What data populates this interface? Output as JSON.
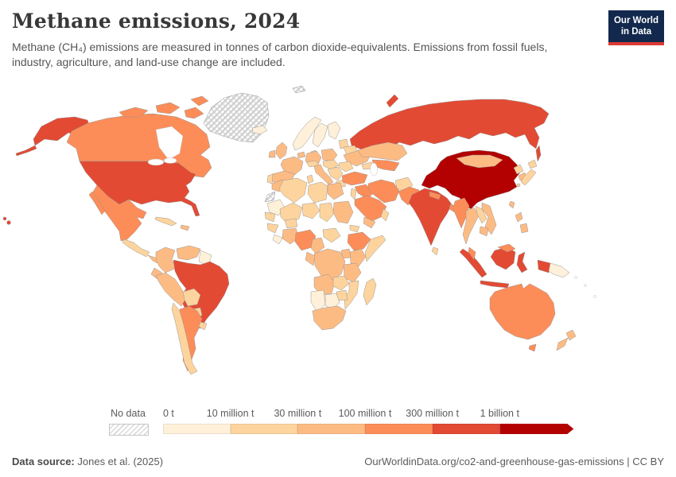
{
  "header": {
    "title": "Methane emissions, 2024",
    "subtitle": "Methane (CH₄) emissions are measured in tonnes of carbon dioxide-equivalents. Emissions from fossil fuels, industry, agriculture, and land-use change are included.",
    "logo_line1": "Our World",
    "logo_line2": "in Data"
  },
  "legend": {
    "no_data_label": "No data",
    "ticks": [
      "0 t",
      "10 million t",
      "30 million t",
      "100 million t",
      "300 million t",
      "1 billion t"
    ]
  },
  "footer": {
    "source_label": "Data source:",
    "source_value": "Jones et al. (2025)",
    "credit": "OurWorldinData.org/co2-and-greenhouse-gas-emissions | CC BY"
  },
  "chart_data": {
    "type": "heatmap",
    "subtype": "choropleth-world-map",
    "title": "Methane emissions, 2024",
    "unit": "tonnes of carbon dioxide-equivalents",
    "legend_bin_labels": [
      "0 t",
      "10 million t",
      "30 million t",
      "100 million t",
      "300 million t",
      "1 billion t"
    ],
    "bin_colors": [
      "#fef0d9",
      "#fdd49e",
      "#fdbb84",
      "#fc8d59",
      "#e34a33",
      "#b30000"
    ],
    "bin_ranges": [
      "0–10 million t",
      "10–30 million t",
      "30–100 million t",
      "100–300 million t",
      "300 million–1 billion t",
      "1 billion t +"
    ],
    "no_data_style": "diagonal-hatch",
    "countries": [
      {
        "id": "china",
        "name": "China",
        "bin": 5
      },
      {
        "id": "usa",
        "name": "United States",
        "bin": 4
      },
      {
        "id": "russia",
        "name": "Russia",
        "bin": 4
      },
      {
        "id": "india",
        "name": "India",
        "bin": 4
      },
      {
        "id": "brazil",
        "name": "Brazil",
        "bin": 4
      },
      {
        "id": "indonesia",
        "name": "Indonesia",
        "bin": 4
      },
      {
        "id": "canada",
        "name": "Canada",
        "bin": 3
      },
      {
        "id": "mexico",
        "name": "Mexico",
        "bin": 3
      },
      {
        "id": "argentina",
        "name": "Argentina",
        "bin": 3
      },
      {
        "id": "australia",
        "name": "Australia",
        "bin": 3
      },
      {
        "id": "turkey",
        "name": "Turkey",
        "bin": 3
      },
      {
        "id": "iran",
        "name": "Iran",
        "bin": 3
      },
      {
        "id": "syria-iraq",
        "name": "Iraq & Syria",
        "bin": 3
      },
      {
        "id": "saudi-arabia",
        "name": "Saudi Arabia",
        "bin": 3
      },
      {
        "id": "uzbekistan-turkmenistan",
        "name": "Uzbekistan & Turkmenistan",
        "bin": 3
      },
      {
        "id": "pakistan",
        "name": "Pakistan",
        "bin": 3
      },
      {
        "id": "nepal",
        "name": "Nepal",
        "bin": 3
      },
      {
        "id": "bangladesh",
        "name": "Bangladesh",
        "bin": 3
      },
      {
        "id": "myanmar",
        "name": "Myanmar",
        "bin": 3
      },
      {
        "id": "malaysia",
        "name": "Malaysia",
        "bin": 3
      },
      {
        "id": "nigeria",
        "name": "Nigeria",
        "bin": 3
      },
      {
        "id": "ethiopia",
        "name": "Ethiopia",
        "bin": 3
      },
      {
        "id": "colombia",
        "name": "Colombia",
        "bin": 2
      },
      {
        "id": "venezuela",
        "name": "Venezuela",
        "bin": 2
      },
      {
        "id": "ecuador",
        "name": "Ecuador",
        "bin": 2
      },
      {
        "id": "peru",
        "name": "Peru",
        "bin": 2
      },
      {
        "id": "uk",
        "name": "United Kingdom",
        "bin": 2
      },
      {
        "id": "ireland",
        "name": "Ireland",
        "bin": 2
      },
      {
        "id": "france",
        "name": "France",
        "bin": 2
      },
      {
        "id": "spain",
        "name": "Spain",
        "bin": 2
      },
      {
        "id": "germany",
        "name": "Germany",
        "bin": 2
      },
      {
        "id": "netherlands-belgium",
        "name": "Netherlands & Belgium",
        "bin": 2
      },
      {
        "id": "poland",
        "name": "Poland",
        "bin": 2
      },
      {
        "id": "italy",
        "name": "Italy",
        "bin": 2
      },
      {
        "id": "ukraine",
        "name": "Ukraine",
        "bin": 2
      },
      {
        "id": "kazakhstan",
        "name": "Kazakhstan",
        "bin": 2
      },
      {
        "id": "mongolia",
        "name": "Mongolia",
        "bin": 2
      },
      {
        "id": "south-korea",
        "name": "South Korea",
        "bin": 2
      },
      {
        "id": "taiwan",
        "name": "Taiwan",
        "bin": 2
      },
      {
        "id": "thailand",
        "name": "Thailand",
        "bin": 2
      },
      {
        "id": "vietnam",
        "name": "Vietnam",
        "bin": 2
      },
      {
        "id": "cambodia",
        "name": "Cambodia",
        "bin": 2
      },
      {
        "id": "philippines",
        "name": "Philippines",
        "bin": 2
      },
      {
        "id": "new-zealand",
        "name": "New Zealand",
        "bin": 2
      },
      {
        "id": "yemen",
        "name": "Yemen",
        "bin": 2
      },
      {
        "id": "morocco",
        "name": "Morocco",
        "bin": 2
      },
      {
        "id": "egypt",
        "name": "Egypt",
        "bin": 2
      },
      {
        "id": "sudan",
        "name": "Sudan",
        "bin": 2
      },
      {
        "id": "ivory-ghana",
        "name": "Côte d'Ivoire & Ghana",
        "bin": 2
      },
      {
        "id": "cameroon",
        "name": "Cameroon",
        "bin": 2
      },
      {
        "id": "drc",
        "name": "Democratic Republic of Congo",
        "bin": 2
      },
      {
        "id": "gabon-congo",
        "name": "Gabon & Congo",
        "bin": 2
      },
      {
        "id": "uganda",
        "name": "Uganda",
        "bin": 2
      },
      {
        "id": "kenya",
        "name": "Kenya",
        "bin": 2
      },
      {
        "id": "tanzania",
        "name": "Tanzania",
        "bin": 2
      },
      {
        "id": "angola",
        "name": "Angola",
        "bin": 2
      },
      {
        "id": "south-africa",
        "name": "South Africa",
        "bin": 2
      },
      {
        "id": "hispaniola",
        "name": "Dominican Republic & Haiti",
        "bin": 2
      },
      {
        "id": "panama-region",
        "name": "Costa Rica & Panama",
        "bin": 2
      },
      {
        "id": "cuba",
        "name": "Cuba",
        "bin": 1
      },
      {
        "id": "guatemala-region",
        "name": "Guatemala–Nicaragua",
        "bin": 1
      },
      {
        "id": "bolivia",
        "name": "Bolivia",
        "bin": 1
      },
      {
        "id": "paraguay",
        "name": "Paraguay",
        "bin": 1
      },
      {
        "id": "chile",
        "name": "Chile",
        "bin": 1
      },
      {
        "id": "uruguay",
        "name": "Uruguay",
        "bin": 1
      },
      {
        "id": "denmark",
        "name": "Denmark",
        "bin": 1
      },
      {
        "id": "baltics",
        "name": "Baltic states",
        "bin": 1
      },
      {
        "id": "belarus",
        "name": "Belarus",
        "bin": 1
      },
      {
        "id": "portugal",
        "name": "Portugal",
        "bin": 1
      },
      {
        "id": "swiss-austria",
        "name": "Switzerland & Austria",
        "bin": 1
      },
      {
        "id": "czech-hungary",
        "name": "Czechia & Hungary",
        "bin": 1
      },
      {
        "id": "balkans",
        "name": "Balkans",
        "bin": 1
      },
      {
        "id": "greece",
        "name": "Greece",
        "bin": 1
      },
      {
        "id": "romania",
        "name": "Romania",
        "bin": 1
      },
      {
        "id": "caucasus",
        "name": "Caucasus",
        "bin": 1
      },
      {
        "id": "israel-jordan",
        "name": "Israel & Jordan",
        "bin": 1
      },
      {
        "id": "oman",
        "name": "Oman",
        "bin": 1
      },
      {
        "id": "afghanistan",
        "name": "Afghanistan",
        "bin": 1
      },
      {
        "id": "sri-lanka",
        "name": "Sri Lanka",
        "bin": 1
      },
      {
        "id": "laos",
        "name": "Laos",
        "bin": 1
      },
      {
        "id": "north-korea",
        "name": "North Korea",
        "bin": 1
      },
      {
        "id": "japan",
        "name": "Japan",
        "bin": 1
      },
      {
        "id": "algeria",
        "name": "Algeria",
        "bin": 1
      },
      {
        "id": "tunisia",
        "name": "Tunisia",
        "bin": 1
      },
      {
        "id": "libya",
        "name": "Libya",
        "bin": 1
      },
      {
        "id": "mali",
        "name": "Mali",
        "bin": 1
      },
      {
        "id": "niger",
        "name": "Niger",
        "bin": 1
      },
      {
        "id": "chad",
        "name": "Chad",
        "bin": 1
      },
      {
        "id": "eritrea",
        "name": "Eritrea & Djibouti",
        "bin": 1
      },
      {
        "id": "senegal",
        "name": "Senegal",
        "bin": 1
      },
      {
        "id": "guinea",
        "name": "Guinea",
        "bin": 1
      },
      {
        "id": "burkina-faso",
        "name": "Burkina Faso",
        "bin": 1
      },
      {
        "id": "central-african-republic",
        "name": "Central African Republic",
        "bin": 1
      },
      {
        "id": "somalia",
        "name": "Somalia",
        "bin": 1
      },
      {
        "id": "zambia",
        "name": "Zambia",
        "bin": 1
      },
      {
        "id": "mozambique",
        "name": "Mozambique",
        "bin": 1
      },
      {
        "id": "zimbabwe",
        "name": "Zimbabwe",
        "bin": 1
      },
      {
        "id": "madagascar",
        "name": "Madagascar",
        "bin": 1
      },
      {
        "id": "iceland",
        "name": "Iceland",
        "bin": 0
      },
      {
        "id": "norway",
        "name": "Norway",
        "bin": 0
      },
      {
        "id": "sweden",
        "name": "Sweden",
        "bin": 0
      },
      {
        "id": "finland",
        "name": "Finland",
        "bin": 0
      },
      {
        "id": "guyanas",
        "name": "Guyana & Suriname",
        "bin": 0
      },
      {
        "id": "papua-new-guinea",
        "name": "Papua New Guinea",
        "bin": 0
      },
      {
        "id": "mauritania",
        "name": "Mauritania",
        "bin": 0
      },
      {
        "id": "sierra-liberia",
        "name": "Sierra Leone & Liberia",
        "bin": 0
      },
      {
        "id": "namibia",
        "name": "Namibia",
        "bin": 0
      },
      {
        "id": "botswana",
        "name": "Botswana",
        "bin": 0
      },
      {
        "id": "greenland",
        "name": "Greenland",
        "bin": -1
      },
      {
        "id": "western-sahara",
        "name": "Western Sahara",
        "bin": -1
      },
      {
        "id": "svalbard",
        "name": "Svalbard",
        "bin": -1
      }
    ]
  }
}
